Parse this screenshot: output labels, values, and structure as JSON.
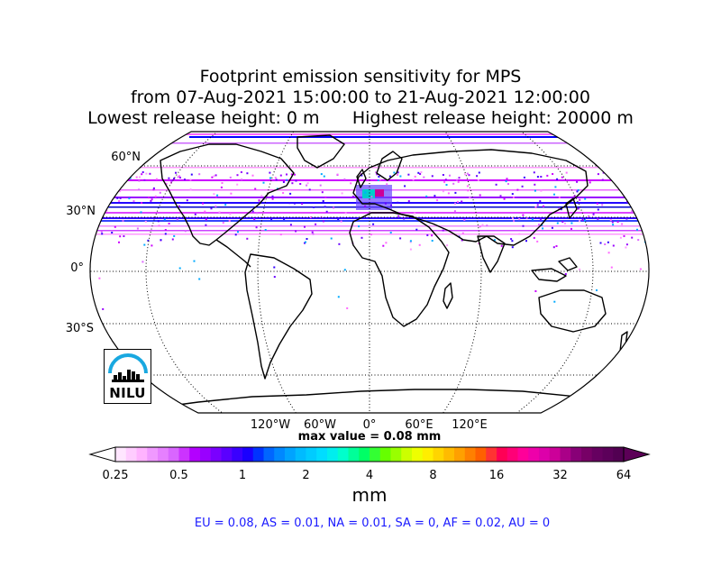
{
  "title": {
    "line1": "Footprint emission sensitivity for MPS",
    "line2": "from 07-Aug-2021 15:00:00 to 21-Aug-2021 12:00:00",
    "line3_left": "Lowest release height: 0 m",
    "line3_right": "Highest release height: 20000 m"
  },
  "map": {
    "projection": "robinson",
    "lat_labels": [
      "60°N",
      "30°N",
      "0°",
      "30°S"
    ],
    "lon_labels": [
      "120°W",
      "60°W",
      "0°",
      "60°E",
      "120°E"
    ],
    "gridlines": true
  },
  "logo": {
    "text": "NILU"
  },
  "max_value": "max value = 0.08 mm",
  "colorbar": {
    "tick_labels": [
      "0.25",
      "0.5",
      "1",
      "2",
      "4",
      "8",
      "16",
      "32",
      "64"
    ],
    "unit": "mm",
    "extend": "both"
  },
  "stats": "EU = 0.08,  AS = 0.01,  NA = 0.01,  SA = 0,  AF = 0.02,  AU = 0"
}
